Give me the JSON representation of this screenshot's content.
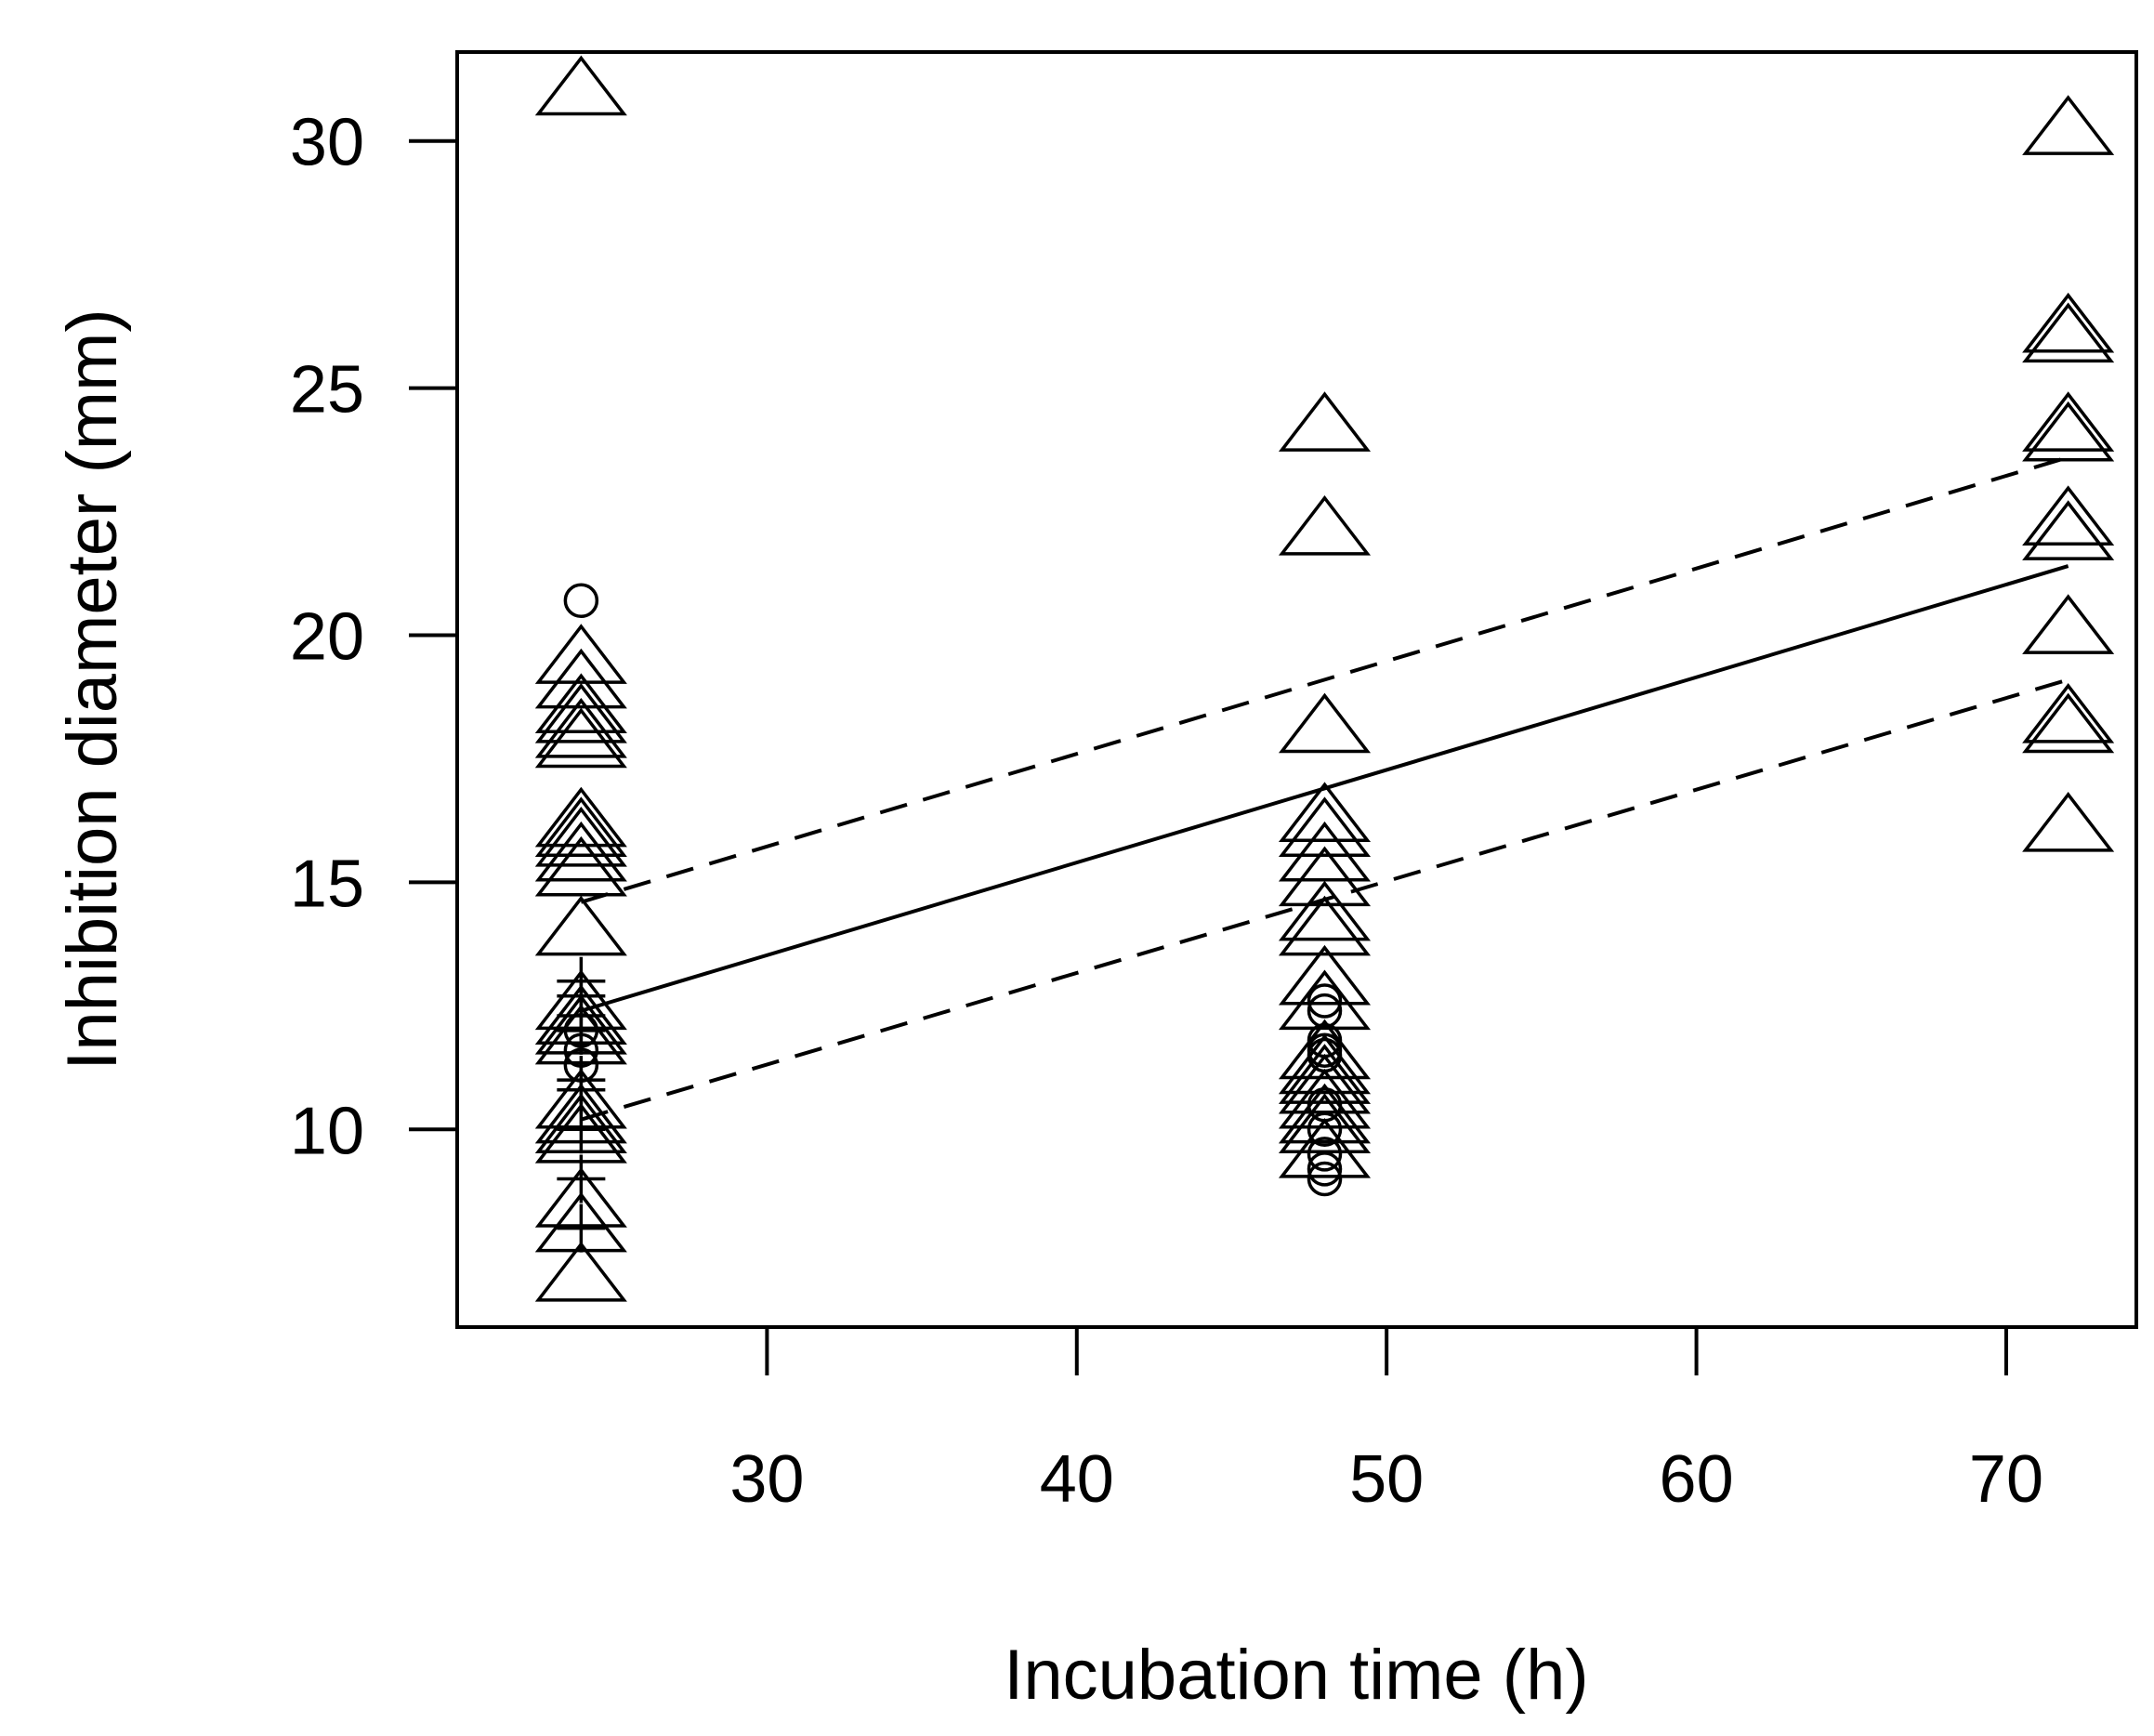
{
  "chart_data": {
    "type": "scatter",
    "title": "",
    "xlabel": "Incubation time (h)",
    "ylabel": "Inhibition diameter (mm)",
    "xlim": [
      20.0,
      74.2
    ],
    "ylim": [
      6.0,
      31.8
    ],
    "x_ticks": [
      30,
      40,
      50,
      60,
      70
    ],
    "y_ticks": [
      10,
      15,
      20,
      25,
      30
    ],
    "grid": false,
    "legend": "none",
    "series": [
      {
        "marker": "triangle",
        "color": "#000000",
        "points": [
          {
            "x": 24,
            "y": 31.0
          },
          {
            "x": 24,
            "y": 19.5
          },
          {
            "x": 24,
            "y": 19.0
          },
          {
            "x": 24,
            "y": 18.5
          },
          {
            "x": 24,
            "y": 18.3
          },
          {
            "x": 24,
            "y": 18.0
          },
          {
            "x": 24,
            "y": 17.8
          },
          {
            "x": 24,
            "y": 16.2
          },
          {
            "x": 24,
            "y": 16.0
          },
          {
            "x": 24,
            "y": 15.8
          },
          {
            "x": 24,
            "y": 15.5
          },
          {
            "x": 24,
            "y": 15.2
          },
          {
            "x": 24,
            "y": 14.0
          },
          {
            "x": 24,
            "y": 12.5
          },
          {
            "x": 24,
            "y": 12.2
          },
          {
            "x": 24,
            "y": 12.0
          },
          {
            "x": 24,
            "y": 11.8
          },
          {
            "x": 24,
            "y": 10.5
          },
          {
            "x": 24,
            "y": 10.2
          },
          {
            "x": 24,
            "y": 10.0
          },
          {
            "x": 24,
            "y": 9.8
          },
          {
            "x": 24,
            "y": 8.5
          },
          {
            "x": 24,
            "y": 8.0
          },
          {
            "x": 24,
            "y": 7.0
          },
          {
            "x": 48,
            "y": 24.2
          },
          {
            "x": 48,
            "y": 22.1
          },
          {
            "x": 48,
            "y": 18.1
          },
          {
            "x": 48,
            "y": 16.3
          },
          {
            "x": 48,
            "y": 16.0
          },
          {
            "x": 48,
            "y": 15.5
          },
          {
            "x": 48,
            "y": 15.0
          },
          {
            "x": 48,
            "y": 14.3
          },
          {
            "x": 48,
            "y": 14.0
          },
          {
            "x": 48,
            "y": 13.0
          },
          {
            "x": 48,
            "y": 12.5
          },
          {
            "x": 48,
            "y": 11.5
          },
          {
            "x": 48,
            "y": 11.2
          },
          {
            "x": 48,
            "y": 11.0
          },
          {
            "x": 48,
            "y": 10.8
          },
          {
            "x": 48,
            "y": 10.5
          },
          {
            "x": 48,
            "y": 10.2
          },
          {
            "x": 48,
            "y": 10.0
          },
          {
            "x": 48,
            "y": 9.5
          },
          {
            "x": 72,
            "y": 30.2
          },
          {
            "x": 72,
            "y": 26.2
          },
          {
            "x": 72,
            "y": 26.0
          },
          {
            "x": 72,
            "y": 24.2
          },
          {
            "x": 72,
            "y": 24.0
          },
          {
            "x": 72,
            "y": 22.3
          },
          {
            "x": 72,
            "y": 22.0
          },
          {
            "x": 72,
            "y": 20.1
          },
          {
            "x": 72,
            "y": 18.3
          },
          {
            "x": 72,
            "y": 18.1
          },
          {
            "x": 72,
            "y": 16.1
          }
        ]
      },
      {
        "marker": "circle",
        "color": "#000000",
        "points": [
          {
            "x": 24,
            "y": 20.7
          },
          {
            "x": 24,
            "y": 12.0
          },
          {
            "x": 24,
            "y": 11.6
          },
          {
            "x": 24,
            "y": 11.3
          },
          {
            "x": 48,
            "y": 12.6
          },
          {
            "x": 48,
            "y": 12.4
          },
          {
            "x": 48,
            "y": 11.8
          },
          {
            "x": 48,
            "y": 11.6
          },
          {
            "x": 48,
            "y": 11.5
          },
          {
            "x": 48,
            "y": 10.5
          },
          {
            "x": 48,
            "y": 10.0
          },
          {
            "x": 48,
            "y": 9.5
          },
          {
            "x": 48,
            "y": 9.2
          },
          {
            "x": 48,
            "y": 9.0
          }
        ]
      },
      {
        "marker": "plus",
        "color": "#000000",
        "points": [
          {
            "x": 24,
            "y": 13.0
          },
          {
            "x": 24,
            "y": 12.7
          },
          {
            "x": 24,
            "y": 12.3
          },
          {
            "x": 24,
            "y": 12.0
          },
          {
            "x": 24,
            "y": 11.0
          },
          {
            "x": 24,
            "y": 10.8
          },
          {
            "x": 24,
            "y": 10.0
          },
          {
            "x": 24,
            "y": 9.0
          },
          {
            "x": 24,
            "y": 8.0
          }
        ]
      }
    ],
    "lines": [
      {
        "style": "solid",
        "x": [
          24,
          72
        ],
        "y": [
          12.4,
          21.4
        ]
      },
      {
        "style": "dashed",
        "x": [
          24,
          72
        ],
        "y": [
          14.6,
          23.6
        ]
      },
      {
        "style": "dashed",
        "x": [
          24,
          72
        ],
        "y": [
          10.2,
          19.1
        ]
      }
    ]
  }
}
